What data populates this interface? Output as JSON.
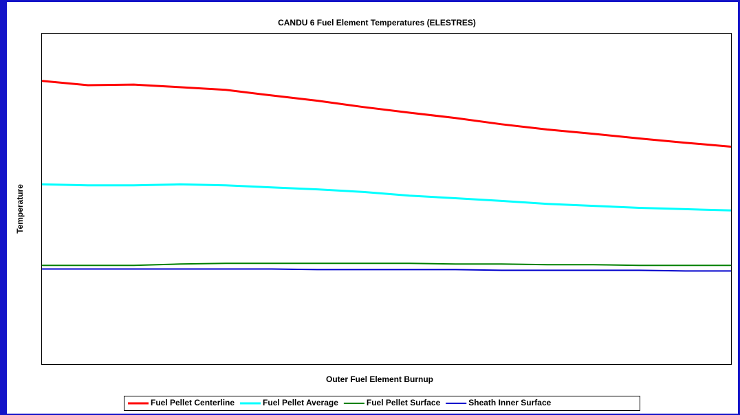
{
  "chart_data": {
    "type": "line",
    "title": "CANDU 6 Fuel Element Temperatures (ELESTRES)",
    "x_label": "Outer Fuel Element Burnup",
    "y_label": "Temperature",
    "ylim": [
      0,
      100
    ],
    "series": [
      {
        "name": "Fuel Pellet Centerline",
        "color": "#ff0000",
        "values": [
          85.7,
          84.4,
          84.6,
          83.8,
          83.0,
          81.3,
          79.7,
          77.8,
          76.1,
          74.5,
          72.6,
          71.0,
          69.7,
          68.3,
          67.0,
          65.8
        ]
      },
      {
        "name": "Fuel Pellet Average",
        "color": "#00ffff",
        "values": [
          54.4,
          54.1,
          54.1,
          54.4,
          54.1,
          53.5,
          52.9,
          52.1,
          51.0,
          50.2,
          49.4,
          48.5,
          47.9,
          47.3,
          46.9,
          46.5
        ]
      },
      {
        "name": "Fuel Pellet Surface",
        "color": "#008000",
        "values": [
          29.9,
          29.9,
          29.9,
          30.3,
          30.5,
          30.5,
          30.5,
          30.5,
          30.5,
          30.3,
          30.3,
          30.1,
          30.1,
          29.9,
          29.9,
          29.9
        ]
      },
      {
        "name": "Sheath Inner Surface",
        "color": "#0000cc",
        "values": [
          28.8,
          28.8,
          28.8,
          28.8,
          28.8,
          28.8,
          28.6,
          28.6,
          28.6,
          28.6,
          28.4,
          28.4,
          28.4,
          28.4,
          28.2,
          28.2
        ]
      }
    ],
    "legend": "bottom"
  }
}
